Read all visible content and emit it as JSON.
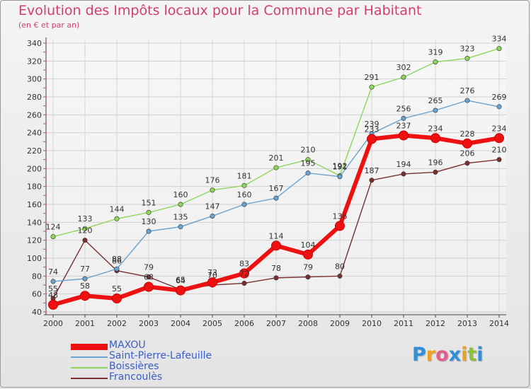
{
  "title": "Evolution des Impôts locaux pour la Commune par Habitant",
  "subtitle": "(en € et par an)",
  "brand": {
    "letters": [
      "P",
      "r",
      "o",
      "x",
      "i",
      "t",
      "i"
    ],
    "colors": [
      "#2f8fd8",
      "#f0a020",
      "#e85a8a",
      "#2f8fd8",
      "#f0a020",
      "#8ac23a",
      "#2f8fd8"
    ]
  },
  "chart_data": {
    "type": "line",
    "title": "Evolution des Impôts locaux pour la Commune par Habitant",
    "subtitle": "(en € et par an)",
    "xlabel": "",
    "ylabel": "",
    "x": [
      2000,
      2001,
      2002,
      2003,
      2004,
      2005,
      2006,
      2007,
      2008,
      2009,
      2010,
      2011,
      2012,
      2013,
      2014
    ],
    "ylim": [
      40,
      340
    ],
    "yticks": [
      40,
      60,
      80,
      100,
      120,
      140,
      160,
      180,
      200,
      220,
      240,
      260,
      280,
      300,
      320,
      340
    ],
    "grid": true,
    "legend_position": "bottom-left",
    "series": [
      {
        "name": "MAXOU",
        "color": "#ee1111",
        "values": [
          48,
          58,
          55,
          68,
          64,
          73,
          83,
          114,
          104,
          136,
          233,
          237,
          234,
          228,
          234
        ]
      },
      {
        "name": "Saint-Pierre-Lafeuille",
        "color": "#6aa3d0",
        "values": [
          74,
          77,
          88,
          130,
          135,
          147,
          160,
          167,
          195,
          191,
          239,
          256,
          265,
          276,
          269
        ]
      },
      {
        "name": "Boissières",
        "color": "#8fd65a",
        "values": [
          124,
          133,
          144,
          151,
          160,
          176,
          181,
          201,
          210,
          192,
          291,
          302,
          319,
          323,
          334
        ]
      },
      {
        "name": "Francoulès",
        "color": "#7a2f2f",
        "values": [
          55,
          120,
          86,
          79,
          65,
          70,
          72,
          78,
          79,
          80,
          187,
          194,
          196,
          206,
          210
        ]
      }
    ]
  }
}
